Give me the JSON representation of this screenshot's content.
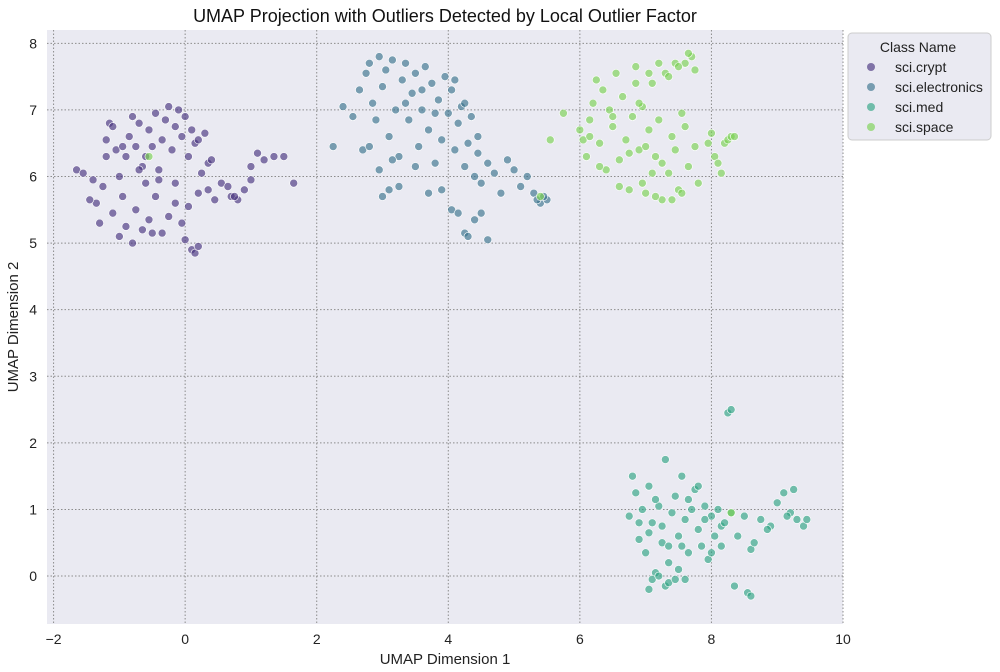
{
  "chart_data": {
    "type": "scatter",
    "title": "UMAP Projection with Outliers Detected by Local Outlier Factor",
    "xlabel": "UMAP Dimension 1",
    "ylabel": "UMAP Dimension 2",
    "xlim": [
      -2.1,
      10.0
    ],
    "ylim": [
      -0.72,
      8.2
    ],
    "xticks": [
      -2,
      0,
      2,
      4,
      6,
      8,
      10
    ],
    "yticks": [
      0,
      1,
      2,
      3,
      4,
      5,
      6,
      7,
      8
    ],
    "grid": true,
    "legend": {
      "title": "Class Name",
      "placement": "outside-top-right"
    },
    "colors": {
      "background": "#eaeaf2",
      "grid": "#8c8c8c",
      "outlier_edge": "#ffffff"
    },
    "series": [
      {
        "name": "sci.crypt",
        "color": "#46327e",
        "points": [
          [
            -1.65,
            6.1
          ],
          [
            -1.55,
            6.05
          ],
          [
            -1.4,
            5.95
          ],
          [
            -1.35,
            5.6
          ],
          [
            -1.25,
            5.85
          ],
          [
            -1.2,
            6.3
          ],
          [
            -1.15,
            6.8
          ],
          [
            -1.1,
            6.75
          ],
          [
            -1.05,
            6.4
          ],
          [
            -1.0,
            6.0
          ],
          [
            -0.95,
            5.7
          ],
          [
            -0.9,
            6.3
          ],
          [
            -0.85,
            6.6
          ],
          [
            -0.8,
            6.9
          ],
          [
            -0.75,
            6.45
          ],
          [
            -0.7,
            6.8
          ],
          [
            -0.65,
            6.15
          ],
          [
            -0.6,
            5.9
          ],
          [
            -0.55,
            6.7
          ],
          [
            -0.5,
            6.45
          ],
          [
            -0.45,
            6.95
          ],
          [
            -0.4,
            6.1
          ],
          [
            -0.35,
            6.55
          ],
          [
            -0.3,
            6.85
          ],
          [
            -0.25,
            7.05
          ],
          [
            -0.2,
            6.4
          ],
          [
            -0.15,
            6.75
          ],
          [
            -0.1,
            7.0
          ],
          [
            -0.05,
            6.6
          ],
          [
            0.0,
            6.9
          ],
          [
            0.05,
            6.3
          ],
          [
            0.1,
            6.7
          ],
          [
            0.15,
            6.5
          ],
          [
            0.2,
            6.55
          ],
          [
            0.3,
            6.65
          ],
          [
            -1.3,
            5.3
          ],
          [
            -1.1,
            5.45
          ],
          [
            -1.0,
            5.1
          ],
          [
            -0.9,
            5.25
          ],
          [
            -0.75,
            5.5
          ],
          [
            -0.65,
            5.2
          ],
          [
            -0.55,
            5.35
          ],
          [
            -0.45,
            5.7
          ],
          [
            -0.35,
            5.15
          ],
          [
            -0.25,
            5.4
          ],
          [
            -0.15,
            5.6
          ],
          [
            -0.05,
            5.3
          ],
          [
            0.0,
            5.05
          ],
          [
            0.05,
            5.55
          ],
          [
            0.1,
            4.9
          ],
          [
            0.15,
            4.85
          ],
          [
            0.2,
            4.95
          ],
          [
            0.2,
            5.75
          ],
          [
            0.35,
            5.8
          ],
          [
            0.45,
            5.65
          ],
          [
            0.55,
            5.9
          ],
          [
            0.65,
            5.85
          ],
          [
            0.7,
            5.7
          ],
          [
            0.8,
            5.65
          ],
          [
            0.9,
            5.8
          ],
          [
            1.0,
            5.95
          ],
          [
            1.1,
            6.35
          ],
          [
            1.2,
            6.25
          ],
          [
            1.35,
            6.3
          ],
          [
            1.5,
            6.3
          ],
          [
            1.65,
            5.9
          ],
          [
            -0.95,
            6.45
          ],
          [
            -0.7,
            6.1
          ],
          [
            -0.4,
            5.95
          ],
          [
            -1.2,
            6.55
          ],
          [
            -0.6,
            6.3
          ],
          [
            0.35,
            6.2
          ],
          [
            0.4,
            6.25
          ],
          [
            0.75,
            5.7
          ],
          [
            1.0,
            6.15
          ],
          [
            -1.45,
            5.65
          ],
          [
            -0.5,
            5.15
          ],
          [
            -0.15,
            5.9
          ],
          [
            0.25,
            6.05
          ],
          [
            -0.8,
            5.0
          ]
        ]
      },
      {
        "name": "sci.electronics",
        "color": "#39718c",
        "points": [
          [
            2.25,
            6.45
          ],
          [
            2.4,
            7.05
          ],
          [
            2.55,
            6.9
          ],
          [
            2.65,
            7.3
          ],
          [
            2.7,
            6.4
          ],
          [
            2.75,
            7.55
          ],
          [
            2.8,
            7.7
          ],
          [
            2.85,
            7.1
          ],
          [
            2.9,
            6.85
          ],
          [
            2.95,
            7.8
          ],
          [
            3.0,
            7.35
          ],
          [
            3.05,
            7.6
          ],
          [
            3.1,
            6.6
          ],
          [
            3.15,
            7.75
          ],
          [
            3.2,
            7.0
          ],
          [
            3.25,
            6.3
          ],
          [
            3.3,
            7.45
          ],
          [
            3.35,
            7.7
          ],
          [
            3.4,
            6.85
          ],
          [
            3.45,
            7.25
          ],
          [
            3.5,
            7.55
          ],
          [
            3.55,
            6.45
          ],
          [
            3.6,
            7.0
          ],
          [
            3.65,
            7.65
          ],
          [
            3.7,
            6.7
          ],
          [
            3.75,
            7.4
          ],
          [
            3.8,
            6.2
          ],
          [
            3.85,
            7.15
          ],
          [
            3.9,
            6.55
          ],
          [
            3.95,
            7.5
          ],
          [
            4.0,
            6.95
          ],
          [
            4.05,
            7.3
          ],
          [
            4.1,
            6.4
          ],
          [
            4.15,
            6.8
          ],
          [
            4.2,
            7.05
          ],
          [
            4.25,
            6.15
          ],
          [
            4.3,
            6.5
          ],
          [
            4.35,
            6.9
          ],
          [
            4.4,
            6.0
          ],
          [
            4.45,
            6.35
          ],
          [
            4.5,
            5.9
          ],
          [
            4.6,
            6.2
          ],
          [
            4.7,
            6.05
          ],
          [
            4.8,
            5.75
          ],
          [
            4.9,
            6.25
          ],
          [
            5.0,
            6.1
          ],
          [
            5.1,
            5.85
          ],
          [
            5.2,
            6.0
          ],
          [
            5.3,
            5.75
          ],
          [
            5.4,
            5.6
          ],
          [
            5.5,
            5.65
          ],
          [
            3.0,
            5.7
          ],
          [
            3.1,
            5.8
          ],
          [
            3.25,
            5.85
          ],
          [
            3.7,
            5.75
          ],
          [
            3.9,
            5.8
          ],
          [
            4.05,
            5.5
          ],
          [
            4.15,
            5.45
          ],
          [
            4.25,
            5.15
          ],
          [
            4.3,
            5.1
          ],
          [
            4.4,
            5.35
          ],
          [
            4.5,
            5.45
          ],
          [
            4.6,
            5.05
          ],
          [
            2.8,
            6.45
          ],
          [
            3.5,
            6.15
          ],
          [
            4.1,
            7.45
          ],
          [
            4.25,
            7.1
          ],
          [
            3.35,
            7.1
          ],
          [
            2.95,
            6.1
          ],
          [
            3.8,
            6.95
          ],
          [
            3.6,
            7.3
          ],
          [
            4.45,
            6.6
          ],
          [
            3.15,
            6.25
          ],
          [
            5.35,
            5.65
          ],
          [
            5.45,
            5.7
          ]
        ]
      },
      {
        "name": "sci.med",
        "color": "#2ea383",
        "points": [
          [
            6.75,
            0.9
          ],
          [
            6.8,
            1.5
          ],
          [
            6.85,
            1.25
          ],
          [
            6.9,
            0.55
          ],
          [
            6.95,
            1.0
          ],
          [
            7.0,
            0.35
          ],
          [
            7.05,
            1.35
          ],
          [
            7.1,
            0.8
          ],
          [
            7.15,
            0.05
          ],
          [
            7.2,
            1.05
          ],
          [
            7.25,
            0.5
          ],
          [
            7.3,
            1.75
          ],
          [
            7.35,
            0.2
          ],
          [
            7.4,
            0.95
          ],
          [
            7.45,
            1.2
          ],
          [
            7.5,
            0.6
          ],
          [
            7.55,
            1.5
          ],
          [
            7.6,
            0.85
          ],
          [
            7.65,
            0.35
          ],
          [
            7.7,
            1.0
          ],
          [
            7.75,
            1.3
          ],
          [
            7.8,
            0.7
          ],
          [
            7.85,
            0.45
          ],
          [
            7.9,
            1.05
          ],
          [
            7.95,
            0.25
          ],
          [
            8.0,
            0.9
          ],
          [
            8.05,
            0.6
          ],
          [
            8.1,
            1.0
          ],
          [
            8.15,
            0.75
          ],
          [
            8.2,
            0.8
          ],
          [
            8.3,
            0.95
          ],
          [
            8.4,
            0.6
          ],
          [
            8.5,
            0.9
          ],
          [
            8.6,
            0.4
          ],
          [
            8.65,
            0.5
          ],
          [
            8.75,
            0.85
          ],
          [
            8.9,
            0.75
          ],
          [
            9.0,
            1.1
          ],
          [
            9.1,
            1.25
          ],
          [
            9.2,
            0.95
          ],
          [
            9.25,
            1.3
          ],
          [
            9.3,
            0.85
          ],
          [
            9.4,
            0.75
          ],
          [
            9.45,
            0.85
          ],
          [
            7.05,
            -0.2
          ],
          [
            7.1,
            -0.05
          ],
          [
            7.2,
            0.0
          ],
          [
            7.3,
            -0.15
          ],
          [
            7.35,
            -0.1
          ],
          [
            7.45,
            -0.05
          ],
          [
            8.25,
            2.45
          ],
          [
            8.3,
            2.5
          ],
          [
            8.35,
            -0.15
          ],
          [
            8.55,
            -0.25
          ],
          [
            8.6,
            -0.3
          ],
          [
            7.25,
            0.75
          ],
          [
            7.55,
            0.45
          ],
          [
            7.8,
            1.35
          ],
          [
            7.05,
            0.65
          ],
          [
            7.65,
            1.15
          ],
          [
            7.35,
            0.45
          ],
          [
            8.0,
            0.35
          ],
          [
            7.15,
            1.15
          ],
          [
            7.6,
            -0.05
          ],
          [
            9.15,
            0.9
          ],
          [
            8.85,
            0.7
          ],
          [
            6.9,
            0.8
          ],
          [
            7.5,
            0.1
          ],
          [
            8.15,
            0.45
          ],
          [
            7.9,
            0.85
          ]
        ]
      },
      {
        "name": "sci.space",
        "color": "#7ad151",
        "points": [
          [
            5.4,
            5.7
          ],
          [
            5.55,
            6.55
          ],
          [
            5.75,
            6.95
          ],
          [
            6.0,
            6.7
          ],
          [
            6.05,
            6.55
          ],
          [
            6.1,
            6.3
          ],
          [
            6.15,
            6.85
          ],
          [
            6.2,
            7.1
          ],
          [
            6.25,
            7.45
          ],
          [
            6.3,
            6.5
          ],
          [
            6.35,
            7.3
          ],
          [
            6.4,
            6.1
          ],
          [
            6.45,
            7.0
          ],
          [
            6.5,
            6.75
          ],
          [
            6.55,
            7.55
          ],
          [
            6.6,
            6.25
          ],
          [
            6.65,
            7.2
          ],
          [
            6.7,
            6.55
          ],
          [
            6.75,
            5.8
          ],
          [
            6.8,
            6.9
          ],
          [
            6.85,
            7.65
          ],
          [
            6.9,
            6.4
          ],
          [
            6.95,
            7.05
          ],
          [
            7.0,
            5.75
          ],
          [
            7.05,
            6.7
          ],
          [
            7.1,
            7.4
          ],
          [
            7.15,
            6.3
          ],
          [
            7.2,
            6.85
          ],
          [
            7.25,
            5.65
          ],
          [
            7.3,
            7.55
          ],
          [
            7.35,
            6.05
          ],
          [
            7.4,
            6.6
          ],
          [
            7.45,
            7.7
          ],
          [
            7.5,
            5.8
          ],
          [
            7.55,
            6.95
          ],
          [
            7.6,
            7.7
          ],
          [
            7.65,
            6.15
          ],
          [
            7.7,
            7.8
          ],
          [
            7.75,
            6.45
          ],
          [
            7.8,
            5.9
          ],
          [
            7.95,
            6.5
          ],
          [
            8.05,
            6.3
          ],
          [
            8.1,
            6.2
          ],
          [
            8.15,
            6.05
          ],
          [
            8.2,
            6.5
          ],
          [
            8.25,
            6.55
          ],
          [
            8.3,
            6.6
          ],
          [
            8.35,
            6.6
          ],
          [
            6.9,
            7.1
          ],
          [
            7.05,
            7.55
          ],
          [
            7.2,
            7.7
          ],
          [
            7.35,
            7.5
          ],
          [
            7.5,
            7.65
          ],
          [
            7.65,
            7.85
          ],
          [
            7.75,
            7.6
          ],
          [
            6.95,
            5.9
          ],
          [
            7.15,
            5.7
          ],
          [
            7.4,
            5.65
          ],
          [
            7.55,
            5.75
          ],
          [
            6.6,
            5.85
          ],
          [
            6.5,
            6.9
          ],
          [
            6.3,
            6.15
          ],
          [
            7.0,
            6.45
          ],
          [
            7.25,
            6.2
          ],
          [
            7.45,
            6.4
          ],
          [
            7.6,
            6.75
          ],
          [
            6.15,
            6.6
          ],
          [
            6.75,
            6.35
          ],
          [
            6.85,
            7.4
          ],
          [
            7.1,
            6.05
          ],
          [
            8.0,
            6.65
          ],
          [
            8.3,
            0.95
          ],
          [
            -0.55,
            6.3
          ]
        ]
      }
    ],
    "outliers": [
      [
        -1.65,
        6.1
      ],
      [
        -1.2,
        6.55
      ],
      [
        -0.95,
        6.45
      ],
      [
        2.25,
        6.45
      ],
      [
        5.4,
        5.7
      ],
      [
        6.9,
        7.1
      ],
      [
        7.05,
        -0.2
      ],
      [
        8.25,
        2.45
      ],
      [
        8.3,
        2.5
      ],
      [
        8.6,
        -0.3
      ],
      [
        8.3,
        0.95
      ],
      [
        9.45,
        0.85
      ]
    ]
  }
}
